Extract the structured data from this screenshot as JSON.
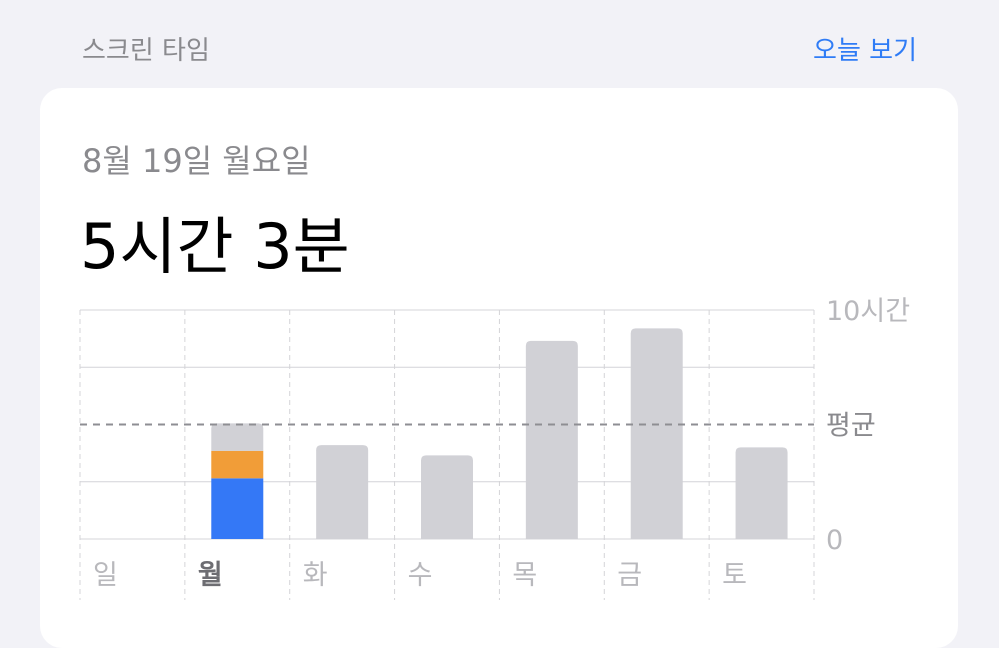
{
  "header": {
    "title": "스크린 타임",
    "link": "오늘 보기"
  },
  "card": {
    "date": "8월 19일 월요일",
    "total": "5시간 3분"
  },
  "colors": {
    "accent": "#2f7cf6",
    "blue": "#3478f6",
    "orange": "#f19d38",
    "gray": "#d1d1d6",
    "background": "#f2f2f7"
  },
  "chart_data": {
    "type": "bar",
    "stacked": true,
    "categories": [
      "일",
      "월",
      "화",
      "수",
      "목",
      "금",
      "토"
    ],
    "selected_category": "월",
    "y_unit": "hours",
    "ylim": [
      0,
      10
    ],
    "y_tick_labels": {
      "top": "10시간",
      "average": "평균",
      "bottom": "0"
    },
    "average": 5.0,
    "series": [
      {
        "color": "#3478f6",
        "values": [
          0,
          2.65,
          0,
          0,
          0,
          0,
          0
        ]
      },
      {
        "color": "#f19d38",
        "values": [
          0,
          1.2,
          0,
          0,
          0,
          0,
          0
        ]
      },
      {
        "color": "#d1d1d6",
        "values": [
          0,
          1.2,
          4.1,
          3.65,
          8.65,
          9.2,
          4.0
        ]
      }
    ],
    "grid": true
  }
}
